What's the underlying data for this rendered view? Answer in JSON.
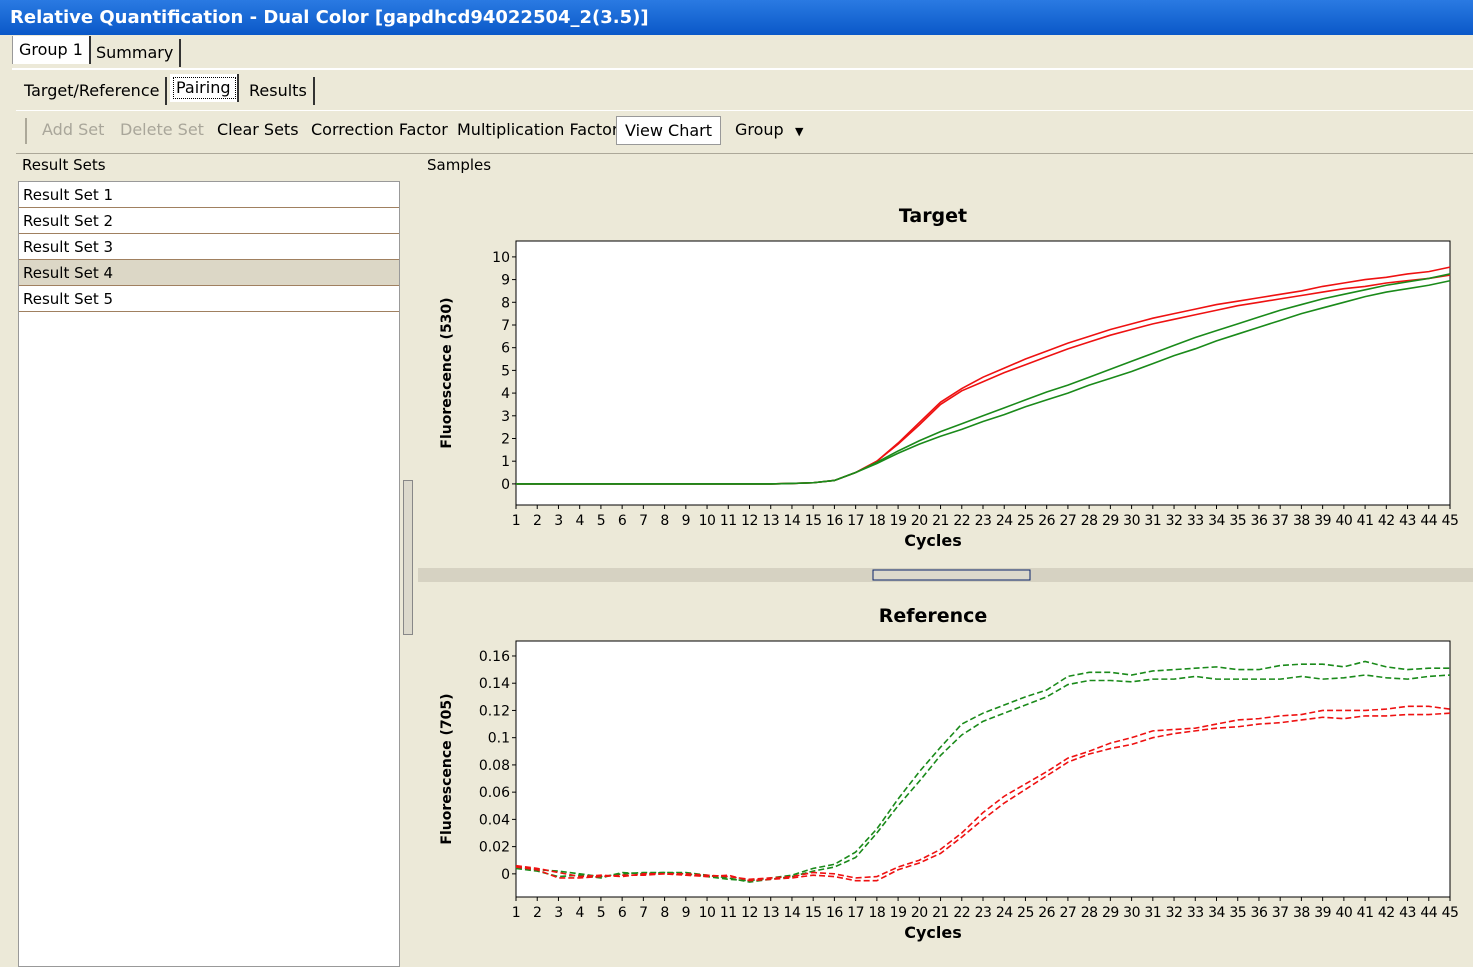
{
  "ui": {
    "window_title": "Relative Quantification - Dual Color [gapdhcd94022504_2(3.5)]",
    "tabs": [
      "Group 1",
      "Summary"
    ],
    "subtabs": [
      "Target/Reference",
      "Pairing",
      "Results"
    ],
    "toolbar": [
      "Add Set",
      "Delete Set",
      "Clear Sets",
      "Correction Factor",
      "Multiplication Factor",
      "View Chart",
      "Group"
    ],
    "result_sets_header": "Result Sets",
    "result_sets": [
      "Result Set 1",
      "Result Set 2",
      "Result Set 3",
      "Result Set 4",
      "Result Set 5"
    ],
    "samples_label": "Samples"
  },
  "chart_data": [
    {
      "type": "line",
      "title": "Target",
      "xlabel": "Cycles",
      "ylabel": "Fluorescence (530)",
      "x": [
        1,
        2,
        3,
        4,
        5,
        6,
        7,
        8,
        9,
        10,
        11,
        12,
        13,
        14,
        15,
        16,
        17,
        18,
        19,
        20,
        21,
        22,
        23,
        24,
        25,
        26,
        27,
        28,
        29,
        30,
        31,
        32,
        33,
        34,
        35,
        36,
        37,
        38,
        39,
        40,
        41,
        42,
        43,
        44,
        45
      ],
      "xticks": [
        1,
        2,
        3,
        4,
        5,
        6,
        7,
        8,
        9,
        10,
        11,
        12,
        13,
        14,
        15,
        16,
        17,
        18,
        19,
        20,
        21,
        22,
        23,
        24,
        25,
        26,
        27,
        28,
        29,
        30,
        31,
        32,
        33,
        34,
        35,
        36,
        37,
        38,
        39,
        40,
        41,
        42,
        43,
        44,
        45
      ],
      "xlim": [
        1,
        45
      ],
      "ylim": [
        -0.93,
        10.7
      ],
      "yticks": [
        0,
        1,
        2,
        3,
        4,
        5,
        6,
        7,
        8,
        9,
        10
      ],
      "line_style": "solid",
      "series": [
        {
          "color": "#ee1111",
          "values": [
            0,
            0,
            0,
            0,
            0,
            0,
            0,
            0,
            0,
            0,
            0,
            0,
            0,
            0.02,
            0.05,
            0.15,
            0.5,
            1.0,
            1.8,
            2.7,
            3.6,
            4.2,
            4.7,
            5.1,
            5.5,
            5.85,
            6.2,
            6.5,
            6.8,
            7.05,
            7.3,
            7.5,
            7.7,
            7.9,
            8.05,
            8.2,
            8.35,
            8.5,
            8.7,
            8.85,
            9.0,
            9.1,
            9.25,
            9.35,
            9.55
          ]
        },
        {
          "color": "#ee1111",
          "values": [
            0,
            0,
            0,
            0,
            0,
            0,
            0,
            0,
            0,
            0,
            0,
            0,
            0,
            0.02,
            0.05,
            0.15,
            0.5,
            1.0,
            1.75,
            2.6,
            3.5,
            4.1,
            4.5,
            4.9,
            5.25,
            5.6,
            5.95,
            6.25,
            6.55,
            6.8,
            7.05,
            7.25,
            7.45,
            7.65,
            7.85,
            8.0,
            8.15,
            8.3,
            8.45,
            8.6,
            8.7,
            8.85,
            8.95,
            9.05,
            9.2
          ]
        },
        {
          "color": "#1a8a1a",
          "values": [
            0,
            0,
            0,
            0,
            0,
            0,
            0,
            0,
            0,
            0,
            0,
            0,
            0,
            0.02,
            0.05,
            0.15,
            0.5,
            0.95,
            1.45,
            1.9,
            2.3,
            2.65,
            3.0,
            3.35,
            3.7,
            4.05,
            4.35,
            4.7,
            5.05,
            5.4,
            5.75,
            6.1,
            6.45,
            6.75,
            7.05,
            7.35,
            7.65,
            7.9,
            8.15,
            8.35,
            8.55,
            8.75,
            8.9,
            9.05,
            9.25
          ]
        },
        {
          "color": "#1a8a1a",
          "values": [
            0,
            0,
            0,
            0,
            0,
            0,
            0,
            0,
            0,
            0,
            0,
            0,
            0,
            0.02,
            0.05,
            0.15,
            0.5,
            0.9,
            1.35,
            1.75,
            2.1,
            2.4,
            2.75,
            3.05,
            3.4,
            3.7,
            4.0,
            4.35,
            4.65,
            4.95,
            5.3,
            5.65,
            5.95,
            6.3,
            6.6,
            6.9,
            7.2,
            7.5,
            7.75,
            8.0,
            8.25,
            8.45,
            8.6,
            8.75,
            8.95
          ]
        }
      ]
    },
    {
      "type": "line",
      "title": "Reference",
      "xlabel": "Cycles",
      "ylabel": "Fluorescence (705)",
      "x": [
        1,
        2,
        3,
        4,
        5,
        6,
        7,
        8,
        9,
        10,
        11,
        12,
        13,
        14,
        15,
        16,
        17,
        18,
        19,
        20,
        21,
        22,
        23,
        24,
        25,
        26,
        27,
        28,
        29,
        30,
        31,
        32,
        33,
        34,
        35,
        36,
        37,
        38,
        39,
        40,
        41,
        42,
        43,
        44,
        45
      ],
      "xticks": [
        1,
        2,
        3,
        4,
        5,
        6,
        7,
        8,
        9,
        10,
        11,
        12,
        13,
        14,
        15,
        16,
        17,
        18,
        19,
        20,
        21,
        22,
        23,
        24,
        25,
        26,
        27,
        28,
        29,
        30,
        31,
        32,
        33,
        34,
        35,
        36,
        37,
        38,
        39,
        40,
        41,
        42,
        43,
        44,
        45
      ],
      "xlim": [
        1,
        45
      ],
      "ylim": [
        -0.017,
        0.171
      ],
      "yticks": [
        0,
        0.02,
        0.04,
        0.06,
        0.08,
        0.1,
        0.12,
        0.14,
        0.16
      ],
      "line_style": "dashed",
      "series": [
        {
          "color": "#1a8a1a",
          "values": [
            0.005,
            0.003,
            0.002,
            0,
            -0.002,
            0,
            0.001,
            0.001,
            0,
            -0.002,
            -0.004,
            -0.005,
            -0.003,
            -0.001,
            0.004,
            0.007,
            0.016,
            0.033,
            0.055,
            0.075,
            0.093,
            0.11,
            0.118,
            0.124,
            0.13,
            0.135,
            0.145,
            0.148,
            0.148,
            0.146,
            0.149,
            0.15,
            0.151,
            0.152,
            0.15,
            0.15,
            0.153,
            0.154,
            0.154,
            0.152,
            0.156,
            0.152,
            0.15,
            0.151,
            0.151
          ]
        },
        {
          "color": "#1a8a1a",
          "values": [
            0.004,
            0.002,
            -0.002,
            -0.001,
            -0.003,
            0.001,
            0,
            0.001,
            0.001,
            -0.001,
            -0.003,
            -0.006,
            -0.004,
            -0.002,
            0.002,
            0.005,
            0.012,
            0.03,
            0.05,
            0.068,
            0.087,
            0.102,
            0.112,
            0.118,
            0.124,
            0.13,
            0.139,
            0.142,
            0.142,
            0.141,
            0.143,
            0.143,
            0.145,
            0.143,
            0.143,
            0.143,
            0.143,
            0.145,
            0.143,
            0.144,
            0.146,
            0.144,
            0.143,
            0.145,
            0.146
          ]
        },
        {
          "color": "#ee1111",
          "values": [
            0.006,
            0.004,
            0.001,
            -0.002,
            -0.001,
            -0.002,
            0,
            0,
            0,
            -0.001,
            -0.002,
            -0.004,
            -0.003,
            -0.002,
            0.001,
            0,
            -0.003,
            -0.002,
            0.005,
            0.01,
            0.018,
            0.03,
            0.045,
            0.057,
            0.066,
            0.075,
            0.085,
            0.09,
            0.096,
            0.1,
            0.105,
            0.106,
            0.107,
            0.11,
            0.113,
            0.114,
            0.116,
            0.117,
            0.12,
            0.12,
            0.12,
            0.121,
            0.123,
            0.123,
            0.121
          ]
        },
        {
          "color": "#ee1111",
          "values": [
            0.005,
            0.003,
            -0.003,
            -0.003,
            -0.002,
            -0.001,
            -0.001,
            0,
            -0.001,
            -0.002,
            -0.001,
            -0.005,
            -0.004,
            -0.003,
            -0.001,
            -0.002,
            -0.005,
            -0.005,
            0.003,
            0.008,
            0.015,
            0.027,
            0.04,
            0.052,
            0.062,
            0.072,
            0.082,
            0.088,
            0.092,
            0.095,
            0.1,
            0.103,
            0.105,
            0.107,
            0.108,
            0.11,
            0.111,
            0.113,
            0.115,
            0.114,
            0.116,
            0.116,
            0.117,
            0.117,
            0.118
          ]
        }
      ]
    }
  ]
}
